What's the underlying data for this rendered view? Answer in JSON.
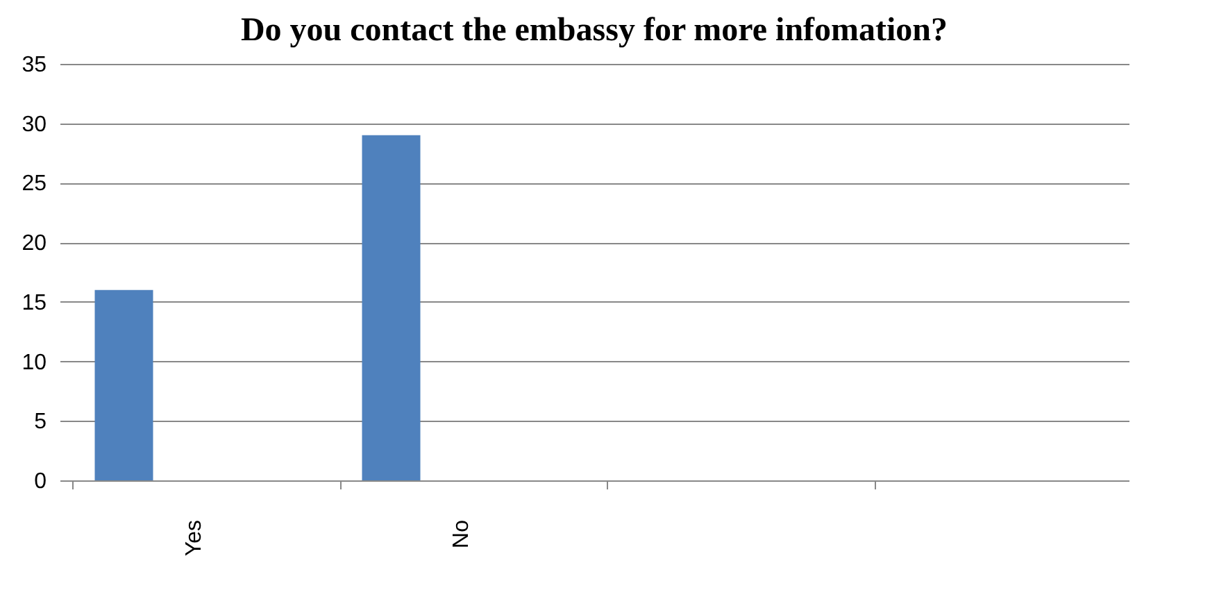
{
  "chart_data": {
    "type": "bar",
    "title": "Do you contact the embassy for more infomation?",
    "categories": [
      "Yes",
      "No",
      null,
      null
    ],
    "values": [
      16,
      29,
      null,
      null
    ],
    "color": "#4f81bd",
    "ylim": [
      0,
      35
    ],
    "yticks": [
      0,
      5,
      10,
      15,
      20,
      25,
      30,
      35
    ],
    "grid": "y"
  }
}
